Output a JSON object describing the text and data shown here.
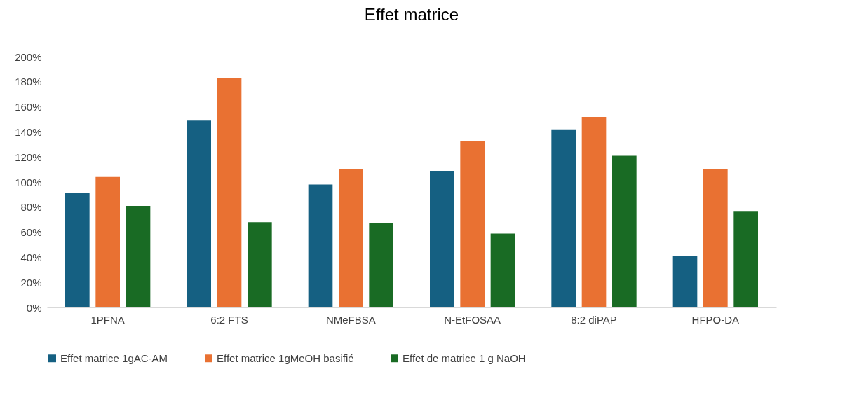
{
  "chart_data": {
    "type": "bar",
    "title": "Effet matrice",
    "categories": [
      "1PFNA",
      "6:2 FTS",
      "NMeFBSA",
      "N-EtFOSAA",
      "8:2 diPAP",
      "HFPO-DA"
    ],
    "series": [
      {
        "name": "Effet matrice 1gAC-AM",
        "color": "#156082",
        "values": [
          91,
          149,
          98,
          109,
          142,
          41
        ]
      },
      {
        "name": "Effet matrice 1gMeOH basifié",
        "color": "#e97132",
        "values": [
          104,
          183,
          110,
          133,
          152,
          110
        ]
      },
      {
        "name": "Effet de matrice 1 g  NaOH",
        "color": "#196b24",
        "values": [
          81,
          68,
          67,
          59,
          121,
          77
        ]
      }
    ],
    "ylim": [
      0,
      200
    ],
    "yticks": [
      {
        "value": 0,
        "label": "0%"
      },
      {
        "value": 20,
        "label": "20%"
      },
      {
        "value": 40,
        "label": "40%"
      },
      {
        "value": 60,
        "label": "60%"
      },
      {
        "value": 80,
        "label": "80%"
      },
      {
        "value": 100,
        "label": "100%"
      },
      {
        "value": 120,
        "label": "120%"
      },
      {
        "value": 140,
        "label": "140%"
      },
      {
        "value": 160,
        "label": "160%"
      },
      {
        "value": 180,
        "label": "180%"
      },
      {
        "value": 200,
        "label": "200%"
      }
    ],
    "legend": "bottom"
  }
}
